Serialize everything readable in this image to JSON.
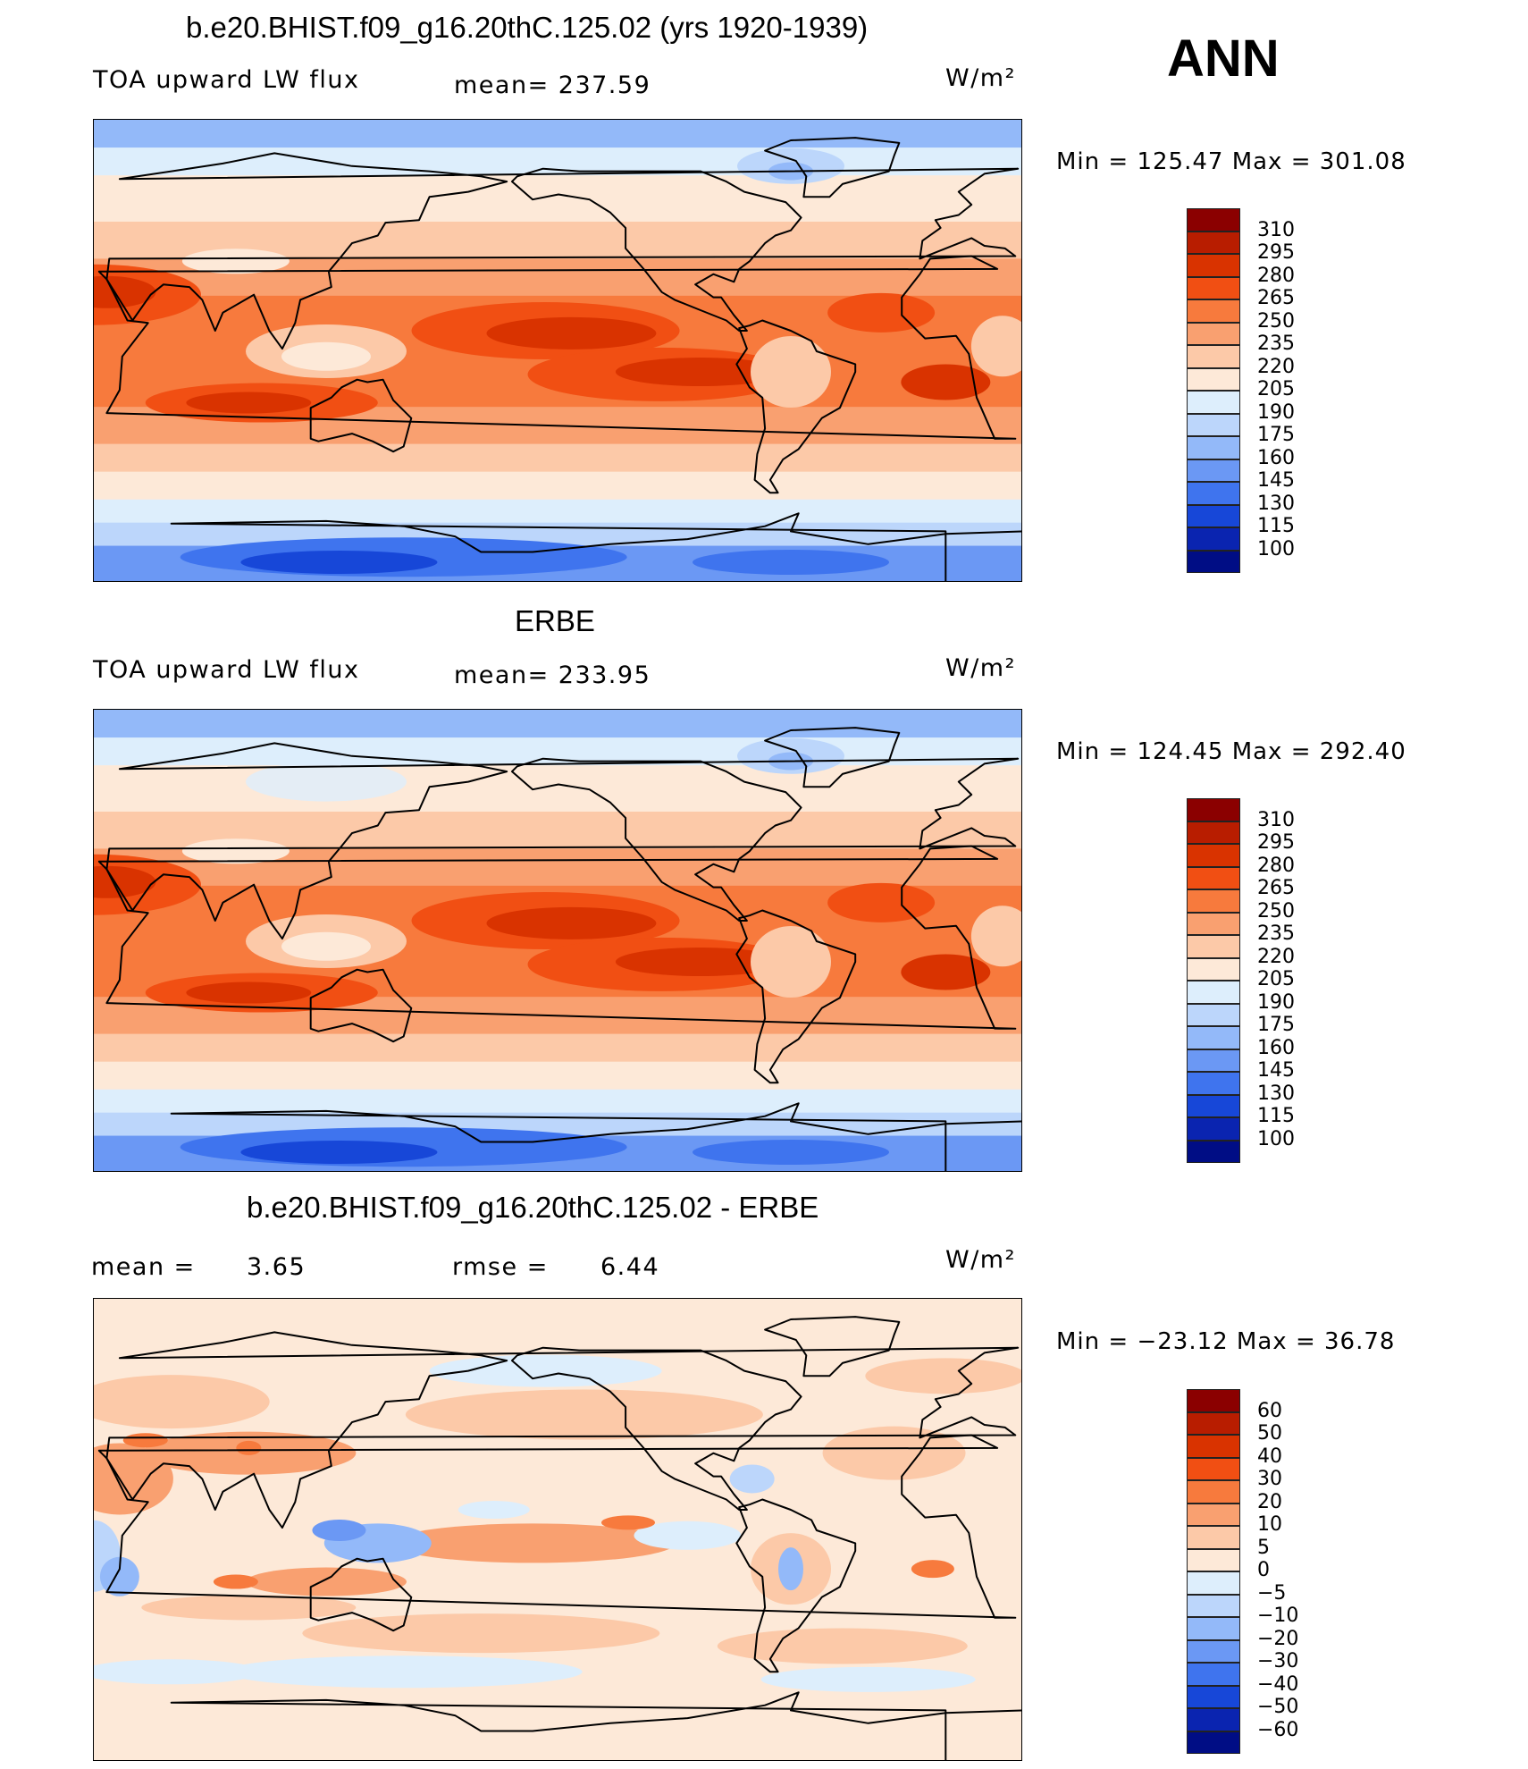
{
  "season": "ANN",
  "units": "W/m²",
  "panels": [
    {
      "id": "model",
      "title": "b.e20.BHIST.f09_g16.20thC.125.02 (yrs 1920-1939)",
      "variable": "TOA upward LW flux",
      "stat_text": "mean=  237.59",
      "minmax": "Min  =  125.47  Max  =  301.08",
      "field": "lw"
    },
    {
      "id": "obs",
      "title": "ERBE",
      "variable": "TOA upward LW flux",
      "stat_text": "mean=  233.95",
      "minmax": "Min  =  124.45  Max  =  292.40",
      "field": "lw"
    },
    {
      "id": "diff",
      "title": "b.e20.BHIST.f09_g16.20thC.125.02 - ERBE",
      "mean_label": "mean  =",
      "mean_value": "3.65",
      "rmse_label": "rmse  =",
      "rmse_value": "6.44",
      "minmax": "Min  =  −23.12  Max  =    36.78",
      "field": "diff"
    }
  ],
  "colorbars": {
    "abs": {
      "labels": [
        "310",
        "295",
        "280",
        "265",
        "250",
        "235",
        "220",
        "205",
        "190",
        "175",
        "160",
        "145",
        "130",
        "115",
        "100"
      ],
      "colors": [
        "#8b0000",
        "#b81d00",
        "#d93300",
        "#f14f13",
        "#f77a3d",
        "#f9a070",
        "#fcc9a8",
        "#fde9d8",
        "#ddeefc",
        "#bcd6fb",
        "#93b9f9",
        "#6b98f4",
        "#3f74ee",
        "#1747d8",
        "#0a24b0",
        "#000d85"
      ]
    },
    "diff": {
      "labels": [
        "60",
        "50",
        "40",
        "30",
        "20",
        "10",
        "5",
        "0",
        "−5",
        "−10",
        "−20",
        "−30",
        "−40",
        "−50",
        "−60"
      ],
      "colors": [
        "#8b0000",
        "#b81d00",
        "#d93300",
        "#f14f13",
        "#f77a3d",
        "#f9a070",
        "#fcc9a8",
        "#fde9d8",
        "#ddeefc",
        "#bcd6fb",
        "#93b9f9",
        "#6b98f4",
        "#3f74ee",
        "#1747d8",
        "#0a24b0",
        "#000d85"
      ]
    }
  }
}
